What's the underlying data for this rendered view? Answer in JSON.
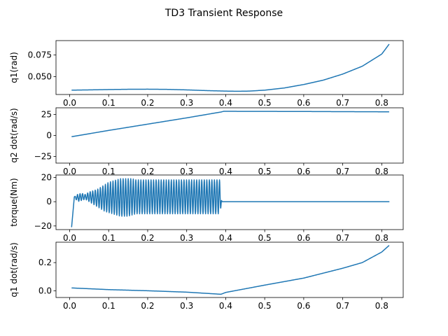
{
  "figure": {
    "title": "TD3 Transient Response"
  },
  "chart_data": [
    {
      "type": "line",
      "ylabel": "q1(rad)",
      "xlabel": "",
      "xlim": [
        -0.035,
        0.855
      ],
      "ylim": [
        0.0295,
        0.0915
      ],
      "xticks": [
        0.0,
        0.1,
        0.2,
        0.3,
        0.4,
        0.5,
        0.6,
        0.7,
        0.8
      ],
      "yticks": [
        0.05,
        0.075
      ],
      "ytick_labels": [
        "0.050",
        "0.075"
      ],
      "series": [
        {
          "color": "#1f77b4",
          "x": [
            0.005,
            0.05,
            0.1,
            0.15,
            0.2,
            0.25,
            0.3,
            0.35,
            0.4,
            0.43,
            0.46,
            0.5,
            0.55,
            0.6,
            0.65,
            0.7,
            0.75,
            0.8,
            0.82
          ],
          "y": [
            0.0345,
            0.0348,
            0.0352,
            0.0355,
            0.0356,
            0.0354,
            0.0348,
            0.034,
            0.0334,
            0.0332,
            0.0334,
            0.0345,
            0.037,
            0.041,
            0.046,
            0.053,
            0.062,
            0.076,
            0.088
          ]
        }
      ]
    },
    {
      "type": "line",
      "ylabel": "q2 dot(rad/s)",
      "xlabel": "",
      "xlim": [
        -0.035,
        0.855
      ],
      "ylim": [
        -33,
        33
      ],
      "xticks": [
        0.0,
        0.1,
        0.2,
        0.3,
        0.4,
        0.5,
        0.6,
        0.7,
        0.8
      ],
      "yticks": [
        -25,
        0,
        25
      ],
      "ytick_labels": [
        "−25",
        "0",
        "25"
      ],
      "series": [
        {
          "color": "#1f77b4",
          "x": [
            0.005,
            0.1,
            0.2,
            0.3,
            0.388,
            0.395,
            0.5,
            0.6,
            0.7,
            0.82
          ],
          "y": [
            -1.5,
            6,
            13.5,
            21,
            28,
            28.8,
            28.7,
            28.6,
            28.4,
            28.2
          ]
        }
      ]
    },
    {
      "type": "line",
      "ylabel": "torque(Nm)",
      "xlabel": "",
      "xlim": [
        -0.035,
        0.855
      ],
      "ylim": [
        -23,
        22
      ],
      "xticks": [
        0.0,
        0.1,
        0.2,
        0.3,
        0.4,
        0.5,
        0.6,
        0.7,
        0.8
      ],
      "yticks": [
        -20,
        0,
        20
      ],
      "ytick_labels": [
        "−20",
        "0",
        "20"
      ],
      "series": [
        {
          "color": "#1f77b4",
          "x": [
            0.005,
            0.012,
            0.02,
            0.03,
            0.04,
            0.05,
            0.06,
            0.07,
            0.08,
            0.09,
            0.1,
            0.11,
            0.12,
            0.13,
            0.14,
            0.15,
            0.16,
            0.17,
            0.18,
            0.19,
            0.2,
            0.25,
            0.3,
            0.35,
            0.385,
            0.39,
            0.4,
            0.5,
            0.6,
            0.7,
            0.82
          ],
          "y": [
            -21,
            4,
            6,
            7,
            6,
            8,
            9,
            10,
            12,
            14,
            16,
            17,
            18,
            19,
            19,
            19,
            19,
            18,
            18,
            18,
            18,
            18,
            18,
            18,
            18,
            0,
            0,
            0,
            0,
            0,
            0
          ],
          "y_lower": [
            -21,
            4,
            0,
            1,
            2,
            0,
            -2,
            -4,
            -6,
            -8,
            -9,
            -10,
            -11,
            -12,
            -12,
            -12,
            -11,
            -10,
            -10,
            -10,
            -10,
            -10,
            -10,
            -10,
            -10,
            0,
            0,
            0,
            0,
            0,
            0
          ],
          "oscillation_period": 0.0065
        }
      ]
    },
    {
      "type": "line",
      "ylabel": "q1 dot(rad/s)",
      "xlabel": "",
      "xlim": [
        -0.035,
        0.855
      ],
      "ylim": [
        -0.048,
        0.345
      ],
      "xticks": [
        0.0,
        0.1,
        0.2,
        0.3,
        0.4,
        0.5,
        0.6,
        0.7,
        0.8
      ],
      "yticks": [
        0.0,
        0.2
      ],
      "ytick_labels": [
        "0.0",
        "0.2"
      ],
      "series": [
        {
          "color": "#1f77b4",
          "x": [
            0.005,
            0.1,
            0.2,
            0.3,
            0.388,
            0.4,
            0.5,
            0.6,
            0.7,
            0.75,
            0.8,
            0.82
          ],
          "y": [
            0.02,
            0.008,
            0.0,
            -0.01,
            -0.025,
            -0.012,
            0.04,
            0.09,
            0.16,
            0.2,
            0.275,
            0.325
          ]
        }
      ]
    }
  ]
}
